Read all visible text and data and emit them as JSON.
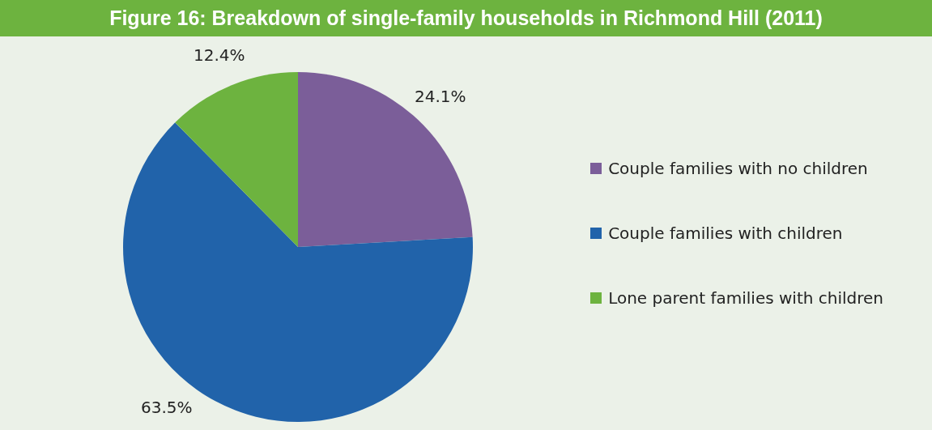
{
  "chart_data": {
    "type": "pie",
    "title": "Figure 16: Breakdown of single-family households in Richmond Hill (2011)",
    "categories": [
      "Couple families with no children",
      "Couple families with children",
      "Lone parent families with children"
    ],
    "values": [
      24.1,
      63.5,
      12.4
    ],
    "colors": [
      "#7b5e99",
      "#2163aa",
      "#6db33f"
    ],
    "value_labels": [
      "24.1%",
      "63.5%",
      "12.4%"
    ],
    "legend": "right"
  }
}
